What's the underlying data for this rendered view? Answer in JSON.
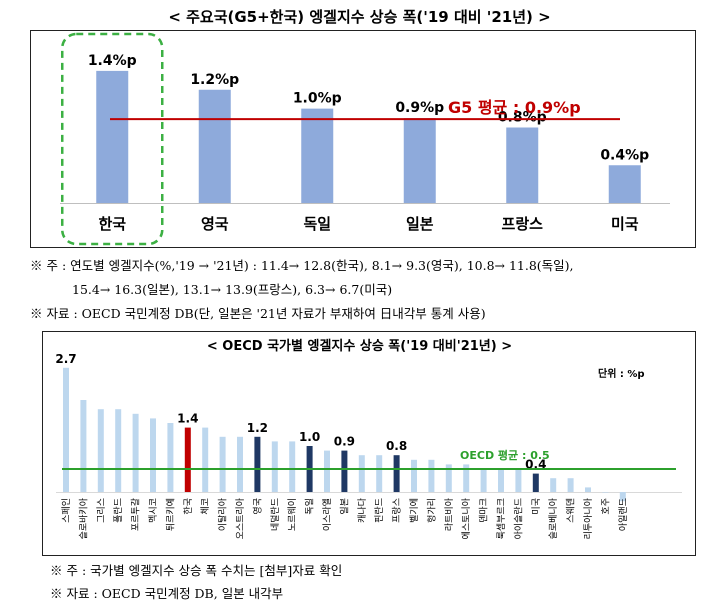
{
  "top_chart": {
    "title": "< 주요국(G5+한국) 엥겔지수 상승 폭('19 대비 '21년) >",
    "avg_label": "G5 평균 : 0.9%p",
    "avg_value": 0.9,
    "bar_color": "#8eaadb",
    "avg_color": "#c00000",
    "highlight_color": "#3cb043"
  },
  "top_notes": {
    "line1": "※ 주 : 연도별 엥겔지수(%,'19 → '21년) : 11.4→ 12.8(한국), 8.1→ 9.3(영국), 10.8→ 11.8(독일),",
    "line2": "15.4→ 16.3(일본), 13.1→ 13.9(프랑스), 6.3→ 6.7(미국)",
    "line3": "※ 자료 : OECD 국민계정 DB(단, 일본은 '21년 자료가 부재하여 日내각부 통계 사용)"
  },
  "bottom_chart": {
    "title": "< OECD 국가별 엥겔지수 상승 폭('19 대비'21년) >",
    "unit": "단위 : %p",
    "avg_label": "OECD 평균 : 0.5",
    "avg_value": 0.5,
    "colors": {
      "default": "#bdd7ee",
      "korea": "#c00000",
      "g5": "#1f3864",
      "avg": "#2ca02c"
    }
  },
  "bottom_notes": {
    "line1": "※ 주 : 국가별 엥겔지수 상승 폭 수치는 [첨부]자료 확인",
    "line2": "※ 자료 : OECD 국민계정 DB, 일본 내각부"
  },
  "chart_data": [
    {
      "type": "bar",
      "title": "주요국(G5+한국) 엥겔지수 상승 폭('19 대비 '21년)",
      "categories": [
        "한국",
        "영국",
        "독일",
        "일본",
        "프랑스",
        "미국"
      ],
      "values": [
        1.4,
        1.2,
        1.0,
        0.9,
        0.8,
        0.4
      ],
      "data_labels": [
        "1.4%p",
        "1.2%p",
        "1.0%p",
        "0.9%p",
        "0.8%p",
        "0.4%p"
      ],
      "reference_line": {
        "label": "G5 평균 : 0.9%p",
        "value": 0.9
      },
      "highlight": "한국",
      "ylim": [
        0,
        1.6
      ],
      "xlabel": "",
      "ylabel": ""
    },
    {
      "type": "bar",
      "title": "OECD 국가별 엥겔지수 상승 폭('19 대비'21년)",
      "unit": "%p",
      "categories": [
        "스페인",
        "슬로바키아",
        "그리스",
        "폴란드",
        "포르투갈",
        "멕시코",
        "튀르키예",
        "한국",
        "체코",
        "이탈리아",
        "오스트리아",
        "영국",
        "네덜란드",
        "노르웨이",
        "독일",
        "이스라엘",
        "일본",
        "캐나다",
        "핀란드",
        "프랑스",
        "벨기에",
        "헝가리",
        "라트비아",
        "에스토니아",
        "덴마크",
        "룩셈부르크",
        "아이슬란드",
        "미국",
        "슬로베니아",
        "스웨덴",
        "리투아니아",
        "호주",
        "아일랜드"
      ],
      "values": [
        2.7,
        2.0,
        1.8,
        1.8,
        1.7,
        1.6,
        1.5,
        1.4,
        1.4,
        1.2,
        1.2,
        1.2,
        1.1,
        1.1,
        1.0,
        0.9,
        0.9,
        0.8,
        0.8,
        0.8,
        0.7,
        0.7,
        0.6,
        0.6,
        0.5,
        0.5,
        0.5,
        0.4,
        0.3,
        0.3,
        0.1,
        0.0,
        -0.2
      ],
      "data_labels": {
        "스페인": "2.7",
        "한국": "1.4",
        "영국": "1.2",
        "독일": "1.0",
        "일본": "0.9",
        "프랑스": "0.8",
        "미국": "0.4"
      },
      "highlight": {
        "korea": [
          "한국"
        ],
        "g5": [
          "영국",
          "독일",
          "일본",
          "프랑스",
          "미국"
        ]
      },
      "reference_line": {
        "label": "OECD 평균 : 0.5",
        "value": 0.5
      },
      "ylim": [
        -0.2,
        2.8
      ],
      "xlabel": "",
      "ylabel": ""
    }
  ]
}
